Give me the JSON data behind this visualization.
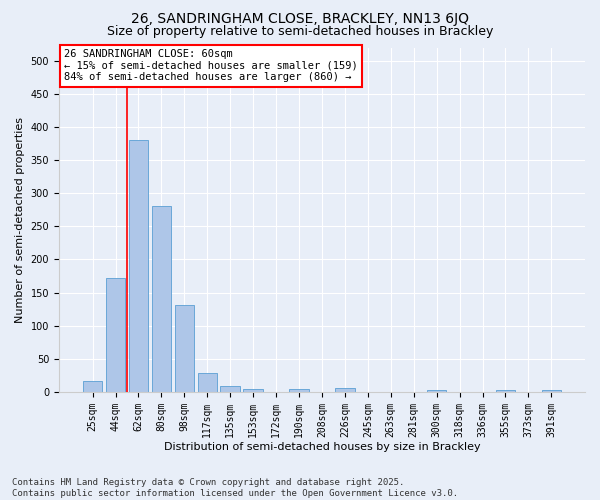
{
  "title": "26, SANDRINGHAM CLOSE, BRACKLEY, NN13 6JQ",
  "subtitle": "Size of property relative to semi-detached houses in Brackley",
  "xlabel": "Distribution of semi-detached houses by size in Brackley",
  "ylabel": "Number of semi-detached properties",
  "categories": [
    "25sqm",
    "44sqm",
    "62sqm",
    "80sqm",
    "98sqm",
    "117sqm",
    "135sqm",
    "153sqm",
    "172sqm",
    "190sqm",
    "208sqm",
    "226sqm",
    "245sqm",
    "263sqm",
    "281sqm",
    "300sqm",
    "318sqm",
    "336sqm",
    "355sqm",
    "373sqm",
    "391sqm"
  ],
  "values": [
    17,
    172,
    381,
    280,
    131,
    29,
    9,
    5,
    0,
    5,
    0,
    6,
    0,
    0,
    0,
    3,
    0,
    0,
    3,
    0,
    3
  ],
  "bar_color": "#aec6e8",
  "bar_edge_color": "#5a9fd4",
  "vline_index": 2,
  "vline_color": "red",
  "annotation_title": "26 SANDRINGHAM CLOSE: 60sqm",
  "annotation_line1": "← 15% of semi-detached houses are smaller (159)",
  "annotation_line2": "84% of semi-detached houses are larger (860) →",
  "annotation_box_color": "white",
  "annotation_box_edge_color": "red",
  "ylim": [
    0,
    520
  ],
  "yticks": [
    0,
    50,
    100,
    150,
    200,
    250,
    300,
    350,
    400,
    450,
    500
  ],
  "background_color": "#e8eef8",
  "footer_line1": "Contains HM Land Registry data © Crown copyright and database right 2025.",
  "footer_line2": "Contains public sector information licensed under the Open Government Licence v3.0.",
  "title_fontsize": 10,
  "subtitle_fontsize": 9,
  "axis_label_fontsize": 8,
  "tick_fontsize": 7,
  "annotation_fontsize": 7.5,
  "footer_fontsize": 6.5
}
